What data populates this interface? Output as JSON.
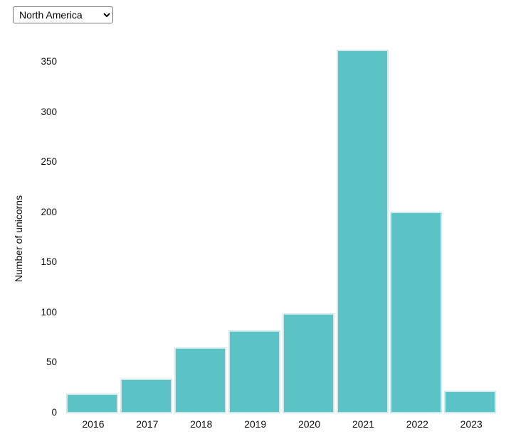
{
  "region_select": {
    "selected": "North America",
    "options": [
      "North America"
    ],
    "dropdown_icon": "chevron-down-icon"
  },
  "chart_data": {
    "type": "bar",
    "title": "",
    "categories": [
      "2016",
      "2017",
      "2018",
      "2019",
      "2020",
      "2021",
      "2022",
      "2023"
    ],
    "values": [
      20,
      35,
      66,
      83,
      100,
      363,
      201,
      23
    ],
    "xlabel": "",
    "ylabel": "Number of unicorns",
    "yticks": [
      0,
      50,
      100,
      150,
      200,
      250,
      300,
      350
    ],
    "ylim": [
      0,
      370
    ],
    "grid": false,
    "legend_position": "none",
    "bar_color": "#5BC2C6",
    "bar_border_color": "#CFEAEA",
    "text_color": "#111111",
    "background_color": "#FFFFFF"
  }
}
